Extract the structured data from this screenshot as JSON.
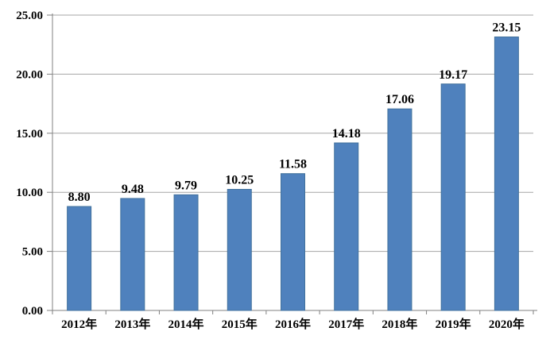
{
  "chart_data": {
    "type": "bar",
    "title": "",
    "xlabel": "",
    "ylabel": "",
    "categories": [
      "2012年",
      "2013年",
      "2014年",
      "2015年",
      "2016年",
      "2017年",
      "2018年",
      "2019年",
      "2020年"
    ],
    "values": [
      8.8,
      9.48,
      9.79,
      10.25,
      11.58,
      14.18,
      17.06,
      19.17,
      23.15
    ],
    "value_labels": [
      "8.80",
      "9.48",
      "9.79",
      "10.25",
      "11.58",
      "14.18",
      "17.06",
      "19.17",
      "23.15"
    ],
    "ylim": [
      0,
      25
    ],
    "y_ticks": [
      {
        "value": 0,
        "label": "0.00"
      },
      {
        "value": 5,
        "label": "5.00"
      },
      {
        "value": 10,
        "label": "10.00"
      },
      {
        "value": 15,
        "label": "15.00"
      },
      {
        "value": 20,
        "label": "20.00"
      },
      {
        "value": 25,
        "label": "25.00"
      }
    ],
    "grid": true,
    "legend_position": "none",
    "colors": {
      "bar_fill": "#4f81bd",
      "bar_stroke": "#41719c",
      "gridline": "#a6a6a6",
      "axis_line": "#808080",
      "text": "#000000",
      "background": "#ffffff"
    }
  }
}
